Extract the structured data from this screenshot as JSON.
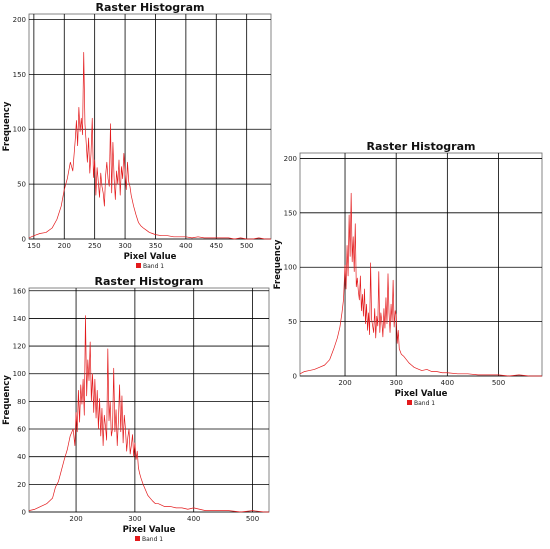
{
  "chart_data": [
    {
      "type": "line",
      "title": "Raster Histogram",
      "xlabel": "Pixel Value",
      "ylabel": "Frequency",
      "xlim": [
        142,
        540
      ],
      "ylim": [
        0,
        205
      ],
      "xticks": [
        150,
        200,
        250,
        300,
        350,
        400,
        450,
        500
      ],
      "yticks": [
        0,
        50,
        100,
        150,
        200
      ],
      "grid": true,
      "legend": "bottom-center",
      "series": [
        {
          "name": "Band 1",
          "color": "#e31a1c",
          "x": [
            142,
            150,
            160,
            170,
            180,
            188,
            195,
            200,
            205,
            210,
            214,
            218,
            220,
            222,
            224,
            226,
            228,
            230,
            232,
            234,
            236,
            238,
            240,
            242,
            244,
            246,
            248,
            250,
            252,
            254,
            256,
            258,
            260,
            262,
            264,
            266,
            268,
            270,
            272,
            274,
            276,
            278,
            280,
            282,
            284,
            286,
            288,
            290,
            292,
            294,
            296,
            298,
            300,
            302,
            304,
            306,
            308,
            310,
            314,
            318,
            322,
            326,
            330,
            335,
            340,
            345,
            350,
            360,
            370,
            380,
            390,
            400,
            410,
            420,
            430,
            440,
            450,
            460,
            470,
            480,
            490,
            500,
            510,
            520,
            530,
            540
          ],
          "values": [
            1,
            3,
            5,
            6,
            10,
            18,
            30,
            45,
            55,
            70,
            62,
            90,
            108,
            85,
            120,
            98,
            110,
            95,
            170,
            105,
            88,
            70,
            92,
            60,
            78,
            110,
            56,
            72,
            40,
            65,
            52,
            38,
            60,
            48,
            42,
            30,
            58,
            70,
            55,
            48,
            105,
            42,
            88,
            55,
            36,
            62,
            50,
            72,
            40,
            66,
            55,
            78,
            60,
            45,
            70,
            52,
            48,
            40,
            30,
            22,
            15,
            12,
            10,
            8,
            6,
            5,
            4,
            3,
            3,
            2,
            2,
            2,
            1,
            2,
            1,
            1,
            1,
            1,
            1,
            0,
            1,
            0,
            0,
            1,
            0,
            0
          ]
        }
      ]
    },
    {
      "type": "line",
      "title": "Raster Histogram",
      "xlabel": "Pixel Value",
      "ylabel": "Frequency",
      "xlim": [
        120,
        528
      ],
      "ylim": [
        0,
        162
      ],
      "xticks": [
        200,
        300,
        400,
        500
      ],
      "yticks": [
        0,
        20,
        40,
        60,
        80,
        100,
        120,
        140,
        160
      ],
      "grid": true,
      "legend": "bottom-center",
      "series": [
        {
          "name": "Band 1",
          "color": "#e31a1c",
          "x": [
            120,
            130,
            140,
            150,
            160,
            165,
            170,
            175,
            180,
            185,
            190,
            195,
            198,
            200,
            202,
            204,
            206,
            208,
            210,
            212,
            214,
            216,
            218,
            220,
            222,
            224,
            226,
            228,
            230,
            232,
            234,
            236,
            238,
            240,
            242,
            244,
            246,
            248,
            250,
            252,
            254,
            256,
            258,
            260,
            262,
            264,
            266,
            268,
            270,
            272,
            274,
            276,
            278,
            280,
            282,
            284,
            286,
            288,
            290,
            292,
            294,
            296,
            298,
            300,
            302,
            304,
            306,
            308,
            310,
            314,
            318,
            322,
            326,
            330,
            335,
            340,
            350,
            360,
            370,
            380,
            390,
            400,
            410,
            420,
            430,
            440,
            450,
            460,
            480,
            500,
            520,
            528
          ],
          "values": [
            1,
            2,
            4,
            6,
            10,
            18,
            22,
            30,
            38,
            45,
            55,
            60,
            48,
            72,
            58,
            88,
            65,
            92,
            78,
            96,
            70,
            142,
            84,
            110,
            95,
            123,
            80,
            100,
            72,
            96,
            68,
            88,
            60,
            82,
            55,
            75,
            48,
            70,
            62,
            52,
            118,
            66,
            80,
            55,
            60,
            104,
            58,
            74,
            48,
            66,
            92,
            58,
            84,
            50,
            70,
            60,
            44,
            54,
            60,
            42,
            48,
            56,
            40,
            50,
            38,
            44,
            32,
            28,
            25,
            20,
            16,
            12,
            10,
            8,
            6,
            6,
            4,
            4,
            3,
            3,
            2,
            3,
            2,
            1,
            1,
            1,
            1,
            1,
            0,
            1,
            0,
            0
          ]
        }
      ]
    },
    {
      "type": "line",
      "title": "Raster Histogram",
      "xlabel": "Pixel Value",
      "ylabel": "Frequency",
      "xlim": [
        112,
        585
      ],
      "ylim": [
        0,
        205
      ],
      "xticks": [
        200,
        300,
        400,
        500
      ],
      "yticks": [
        0,
        50,
        100,
        150,
        200
      ],
      "grid": true,
      "legend": "bottom-center",
      "series": [
        {
          "name": "Band 1",
          "color": "#e31a1c",
          "x": [
            112,
            120,
            130,
            140,
            150,
            160,
            170,
            178,
            185,
            190,
            194,
            197,
            200,
            202,
            204,
            206,
            208,
            210,
            212,
            214,
            216,
            218,
            220,
            222,
            224,
            226,
            228,
            230,
            232,
            234,
            236,
            238,
            240,
            242,
            244,
            246,
            248,
            250,
            252,
            254,
            256,
            258,
            260,
            262,
            264,
            266,
            268,
            270,
            272,
            274,
            276,
            278,
            280,
            282,
            284,
            286,
            288,
            290,
            292,
            294,
            296,
            298,
            300,
            302,
            304,
            306,
            310,
            315,
            320,
            325,
            330,
            335,
            340,
            350,
            360,
            370,
            380,
            390,
            400,
            420,
            440,
            460,
            480,
            500,
            520,
            540,
            560,
            585
          ],
          "values": [
            2,
            4,
            5,
            6,
            8,
            10,
            15,
            25,
            35,
            45,
            58,
            70,
            102,
            80,
            120,
            92,
            148,
            110,
            168,
            105,
            128,
            96,
            140,
            82,
            90,
            78,
            70,
            92,
            60,
            75,
            55,
            80,
            48,
            66,
            42,
            58,
            38,
            104,
            52,
            46,
            40,
            62,
            35,
            55,
            46,
            96,
            40,
            58,
            50,
            36,
            62,
            44,
            72,
            48,
            94,
            58,
            40,
            66,
            50,
            88,
            45,
            60,
            56,
            30,
            42,
            25,
            20,
            18,
            15,
            12,
            10,
            8,
            7,
            5,
            6,
            4,
            4,
            3,
            3,
            2,
            2,
            1,
            1,
            1,
            0,
            1,
            0,
            0
          ]
        }
      ]
    }
  ]
}
